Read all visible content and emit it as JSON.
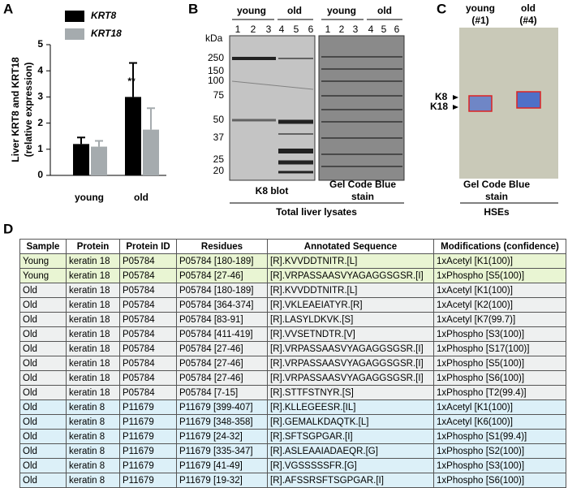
{
  "chart_data": {
    "type": "bar",
    "panel": "A",
    "ylabel": [
      "Liver KRT8 and KRT18",
      "(relative expression)"
    ],
    "categories": [
      "young",
      "old"
    ],
    "series": [
      {
        "name": "KRT8",
        "color": "#000000",
        "values": [
          1.2,
          3.0
        ],
        "errors": [
          0.25,
          1.3
        ]
      },
      {
        "name": "KRT18",
        "color": "#a5abae",
        "values": [
          1.1,
          1.75
        ],
        "errors": [
          0.22,
          0.82
        ]
      }
    ],
    "annotation": "**",
    "ylim": [
      0,
      5
    ],
    "yticks": [
      0,
      1,
      2,
      3,
      4,
      5
    ]
  },
  "panel_b": {
    "letter": "B",
    "unit": "kDa",
    "markers": [
      "250",
      "150",
      "100",
      "75",
      "50",
      "37",
      "25",
      "20"
    ],
    "blot_groups": [
      "young",
      "old"
    ],
    "stain_groups": [
      "young",
      "old"
    ],
    "blot_lanes": [
      "1",
      "2",
      "3",
      "4",
      "5",
      "6"
    ],
    "stain_lanes": [
      "1",
      "2",
      "3",
      "4",
      "5",
      "6"
    ],
    "blot_label": "K8 blot",
    "stain_label": [
      "Gel Code Blue",
      "stain"
    ],
    "caption": "Total liver lysates"
  },
  "panel_c": {
    "letter": "C",
    "lanes": [
      [
        "young",
        "(#1)"
      ],
      [
        "old",
        "(#4)"
      ]
    ],
    "bands": [
      "K8",
      "K18"
    ],
    "stain_label": [
      "Gel Code Blue",
      "stain"
    ],
    "caption": "HSEs"
  },
  "panel_d": {
    "letter": "D",
    "table": {
      "header": [
        "Sample",
        "Protein",
        "Protein ID",
        "Residues",
        "Annotated Sequence",
        "Modifications (confidence)"
      ],
      "rows": [
        [
          "Young",
          "keratin 18",
          "P05784",
          "P05784 [180-189]",
          "[R].KVVDDTNITR.[L]",
          "1xAcetyl [K1(100)]"
        ],
        [
          "Young",
          "keratin 18",
          "P05784",
          "P05784 [27-46]",
          "[R].VRPASSAASVYAGAGGSGSR.[I]",
          "1xPhospho [S5(100)]"
        ],
        [
          "Old",
          "keratin 18",
          "P05784",
          "P05784 [180-189]",
          "[R].KVVDDTNITR.[L]",
          "1xAcetyl [K1(100)]"
        ],
        [
          "Old",
          "keratin 18",
          "P05784",
          "P05784 [364-374]",
          "[R].VKLEAEIATYR.[R]",
          "1xAcetyl [K2(100)]"
        ],
        [
          "Old",
          "keratin 18",
          "P05784",
          "P05784 [83-91]",
          "[R].LASYLDKVK.[S]",
          "1xAcetyl [K7(99.7)]"
        ],
        [
          "Old",
          "keratin 18",
          "P05784",
          "P05784 [411-419]",
          "[R].VVSETNDTR.[V]",
          "1xPhospho [S3(100)]"
        ],
        [
          "Old",
          "keratin 18",
          "P05784",
          "P05784 [27-46]",
          "[R].VRPASSAASVYAGAGGSGSR.[I]",
          "1xPhospho [S17(100)]"
        ],
        [
          "Old",
          "keratin 18",
          "P05784",
          "P05784 [27-46]",
          "[R].VRPASSAASVYAGAGGSGSR.[I]",
          "1xPhospho [S5(100)]"
        ],
        [
          "Old",
          "keratin 18",
          "P05784",
          "P05784 [27-46]",
          "[R].VRPASSAASVYAGAGGSGSR.[I]",
          "1xPhospho [S6(100)]"
        ],
        [
          "Old",
          "keratin 18",
          "P05784",
          "P05784 [7-15]",
          "[R].STTFSTNYR.[S]",
          "1xPhospho [T2(99.4)]"
        ],
        [
          "Old",
          "keratin 8",
          "P11679",
          "P11679 [399-407]",
          "[R].KLLEGEESR.[IL]",
          "1xAcetyl [K1(100)]"
        ],
        [
          "Old",
          "keratin 8",
          "P11679",
          "P11679 [348-358]",
          "[R].GEMALKDAQTK.[L]",
          "1xAcetyl [K6(100)]"
        ],
        [
          "Old",
          "keratin 8",
          "P11679",
          "P11679 [24-32]",
          "[R].SFTSGPGAR.[I]",
          "1xPhospho [S1(99.4)]"
        ],
        [
          "Old",
          "keratin 8",
          "P11679",
          "P11679 [335-347]",
          "[R].ASLEAAIADAEQR.[G]",
          "1xPhospho [S2(100)]"
        ],
        [
          "Old",
          "keratin 8",
          "P11679",
          "P11679 [41-49]",
          "[R].VGSSSSSFR.[G]",
          "1xPhospho [S3(100)]"
        ],
        [
          "Old",
          "keratin 8",
          "P11679",
          "P11679 [19-32]",
          "[R].AFSSRSFTSGPGAR.[I]",
          "1xPhospho [S6(100)]"
        ]
      ],
      "row_colors": [
        "#e9f5d3",
        "#e9f5d3",
        "#eef0f0",
        "#eef0f0",
        "#eef0f0",
        "#eef0f0",
        "#eef0f0",
        "#eef0f0",
        "#eef0f0",
        "#eef0f0",
        "#dcf0f8",
        "#dcf0f8",
        "#dcf0f8",
        "#dcf0f8",
        "#dcf0f8",
        "#dcf0f8"
      ]
    }
  }
}
